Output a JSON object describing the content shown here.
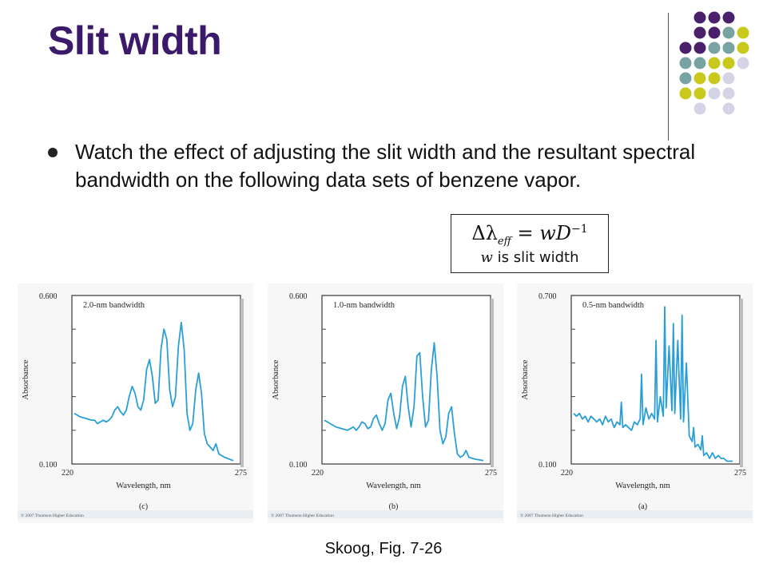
{
  "slide": {
    "title": "Slit width",
    "bullet": "Watch the effect of adjusting the slit width and the resultant spectral bandwidth on the following data sets of benzene vapor.",
    "formula": {
      "expression": "Δλeff = wD−1",
      "note_var": "w",
      "note_text": " is slit width"
    },
    "caption": "Skoog, Fig. 7-26",
    "theme_colors": {
      "title": "#3c1a6b",
      "dot_purple": "#4a1f6b",
      "dot_teal": "#77a3a3",
      "dot_yellow": "#c8c91c",
      "dot_lavender": "#d4d4e6",
      "trace": "#2a9fd6"
    }
  },
  "chart_data": [
    {
      "type": "line",
      "panel_label": "(c)",
      "annotation": "2.0-nm bandwidth",
      "xlabel": "Wavelength, nm",
      "ylabel": "Absorbance",
      "x_ticks": [
        "220",
        "275"
      ],
      "y_ticks": [
        "0.100",
        "0.600"
      ],
      "xlim": [
        220,
        275
      ],
      "ylim": [
        0.1,
        0.6
      ],
      "copyright": "© 2007 Thomson Higher Education",
      "series": [
        {
          "x": [
            220,
            222,
            224,
            226,
            227,
            228,
            229,
            230,
            231,
            232,
            233,
            234,
            235,
            236,
            237,
            238,
            239,
            240,
            241,
            242,
            243,
            244,
            245,
            246,
            247,
            248,
            249,
            250,
            251,
            252,
            253,
            254,
            255,
            256,
            257,
            258,
            259,
            260,
            261,
            262,
            263,
            264,
            265,
            266,
            267,
            268,
            269,
            270,
            272,
            275
          ],
          "y": [
            0.25,
            0.24,
            0.235,
            0.23,
            0.23,
            0.22,
            0.225,
            0.23,
            0.225,
            0.23,
            0.24,
            0.26,
            0.27,
            0.255,
            0.245,
            0.26,
            0.3,
            0.33,
            0.31,
            0.27,
            0.26,
            0.29,
            0.38,
            0.41,
            0.36,
            0.28,
            0.29,
            0.44,
            0.5,
            0.47,
            0.32,
            0.27,
            0.3,
            0.45,
            0.52,
            0.44,
            0.25,
            0.2,
            0.22,
            0.32,
            0.37,
            0.31,
            0.19,
            0.16,
            0.15,
            0.14,
            0.16,
            0.13,
            0.12,
            0.11
          ]
        }
      ]
    },
    {
      "type": "line",
      "panel_label": "(b)",
      "annotation": "1.0-nm bandwidth",
      "xlabel": "Wavelength, nm",
      "ylabel": "Absorbance",
      "x_ticks": [
        "220",
        "275"
      ],
      "y_ticks": [
        "0.100",
        "0.600"
      ],
      "xlim": [
        220,
        275
      ],
      "ylim": [
        0.1,
        0.6
      ],
      "copyright": "© 2007 Thomson Higher Education",
      "series": [
        {
          "x": [
            220,
            222,
            224,
            226,
            228,
            229,
            230,
            231,
            232,
            233,
            234,
            235,
            236,
            237,
            238,
            239,
            240,
            241,
            242,
            243,
            244,
            245,
            246,
            247,
            248,
            249,
            250,
            251,
            252,
            253,
            254,
            255,
            256,
            257,
            258,
            259,
            260,
            261,
            262,
            263,
            264,
            265,
            266,
            267,
            268,
            269,
            270,
            272,
            275
          ],
          "y": [
            0.23,
            0.22,
            0.21,
            0.205,
            0.2,
            0.205,
            0.21,
            0.2,
            0.21,
            0.225,
            0.22,
            0.205,
            0.21,
            0.235,
            0.245,
            0.22,
            0.2,
            0.22,
            0.29,
            0.31,
            0.25,
            0.205,
            0.24,
            0.33,
            0.36,
            0.27,
            0.21,
            0.27,
            0.42,
            0.43,
            0.3,
            0.21,
            0.23,
            0.38,
            0.46,
            0.36,
            0.2,
            0.16,
            0.18,
            0.25,
            0.27,
            0.19,
            0.13,
            0.12,
            0.125,
            0.14,
            0.12,
            0.115,
            0.11
          ]
        }
      ]
    },
    {
      "type": "line",
      "panel_label": "(a)",
      "annotation": "0.5-nm bandwidth",
      "xlabel": "Wavelength, nm",
      "ylabel": "Absorbance",
      "x_ticks": [
        "220",
        "275"
      ],
      "y_ticks": [
        "0.100",
        "0.700"
      ],
      "xlim": [
        220,
        275
      ],
      "ylim": [
        0.1,
        0.7
      ],
      "copyright": "© 2007 Thomson Higher Education",
      "series": [
        {
          "x": [
            220,
            221,
            222,
            223,
            224,
            225,
            226,
            227,
            228,
            229,
            230,
            231,
            232,
            233,
            234,
            235,
            236,
            236.5,
            237,
            238,
            239,
            240,
            241,
            242,
            243,
            243.5,
            244,
            245,
            246,
            247,
            248,
            248.5,
            249,
            250,
            251,
            251.5,
            252,
            253,
            254,
            254.5,
            255,
            256,
            257,
            257.5,
            258,
            259,
            260,
            261,
            261.5,
            262,
            263,
            264,
            264.5,
            265,
            266,
            267,
            268,
            269,
            270,
            271,
            272,
            273,
            275
          ],
          "y": [
            0.28,
            0.27,
            0.28,
            0.26,
            0.27,
            0.25,
            0.27,
            0.26,
            0.25,
            0.26,
            0.24,
            0.27,
            0.25,
            0.26,
            0.23,
            0.25,
            0.24,
            0.32,
            0.23,
            0.24,
            0.23,
            0.22,
            0.25,
            0.24,
            0.26,
            0.42,
            0.24,
            0.3,
            0.26,
            0.28,
            0.26,
            0.54,
            0.25,
            0.34,
            0.27,
            0.66,
            0.3,
            0.52,
            0.29,
            0.6,
            0.28,
            0.54,
            0.26,
            0.63,
            0.25,
            0.46,
            0.2,
            0.18,
            0.23,
            0.16,
            0.17,
            0.15,
            0.2,
            0.13,
            0.14,
            0.12,
            0.14,
            0.12,
            0.13,
            0.12,
            0.12,
            0.11,
            0.11
          ]
        }
      ]
    }
  ]
}
